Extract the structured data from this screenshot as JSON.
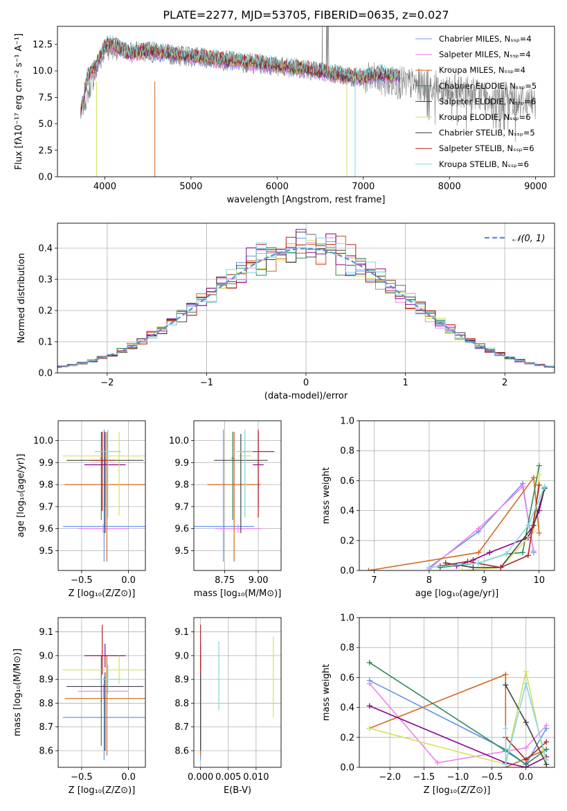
{
  "title": "PLATE=2277, MJD=53705, FIBERID=0635, z=0.027",
  "colors": [
    "#6495ed",
    "#ee82ee",
    "#d2691e",
    "#2e8b57",
    "#8b008b",
    "#d4e157",
    "#404040",
    "#b22222",
    "#7fd8e0"
  ],
  "chart_data": [
    {
      "id": "spectrum",
      "type": "line",
      "title": "PLATE=2277, MJD=53705, FIBERID=0635, z=0.027",
      "xlabel": "wavelength [Angstrom, rest frame]",
      "ylabel": "Flux [fλ10⁻¹⁷ erg cm⁻² s⁻¹ A⁻¹]",
      "xlim": [
        3450,
        9220
      ],
      "ylim": [
        0,
        14.2
      ],
      "xticks": [
        "4000",
        "5000",
        "6000",
        "7000",
        "8000",
        "9000"
      ],
      "yticks": [
        "0.0",
        "2.5",
        "5.0",
        "7.5",
        "10.0",
        "12.5"
      ],
      "grid": false,
      "legend_position": "top-right",
      "data_color": "#808080",
      "legend": [
        "Chabrier MILES, Nₛₛₚ=4",
        "Salpeter MILES, Nₛₛₚ=4",
        "Kroupa MILES, Nₛₛₚ=4",
        "Chabrier ELODIE, Nₛₛₚ=5",
        "Salpeter ELODIE, Nₛₛₚ=6",
        "Kroupa ELODIE, Nₛₛₚ=6",
        "Chabrier STELIB, Nₛₛₚ=5",
        "Salpeter STELIB, Nₛₛₚ=6",
        "Kroupa STELIB, Nₛₛₚ=6"
      ],
      "model_continuum": {
        "x": [
          3720,
          3800,
          3900,
          4000,
          4100,
          4200,
          4300,
          4400,
          4500,
          4600,
          4800,
          5000,
          5200,
          5400,
          5600,
          5800,
          6000,
          6200,
          6400,
          6600,
          6800,
          7000,
          7200,
          7400
        ],
        "y": [
          6.0,
          9.5,
          10.5,
          12.4,
          12.5,
          12.0,
          11.6,
          11.8,
          12.0,
          11.8,
          11.6,
          11.4,
          11.2,
          11.0,
          10.9,
          10.7,
          10.5,
          10.3,
          10.1,
          9.8,
          9.5,
          9.4,
          9.7,
          9.5
        ]
      },
      "data_continuum": {
        "x": [
          3720,
          4000,
          4500,
          5000,
          5500,
          6000,
          6500,
          7000,
          7500,
          8000,
          8500,
          9000
        ],
        "y": [
          6.0,
          12.0,
          11.8,
          11.3,
          10.9,
          10.5,
          10.0,
          9.3,
          8.8,
          8.3,
          7.6,
          7.0
        ]
      }
    },
    {
      "id": "residual-hist",
      "type": "line",
      "xlabel": "(data-model)/error",
      "ylabel": "Normed distribution",
      "xlim": [
        -2.5,
        2.5
      ],
      "ylim": [
        0,
        0.48
      ],
      "xticks": [
        "−2",
        "−1",
        "0",
        "1",
        "2"
      ],
      "yticks": [
        "0.0",
        "0.1",
        "0.2",
        "0.3",
        "0.4"
      ],
      "grid": true,
      "legend_position": "top-right",
      "legend": [
        "𝒩(0, 1)"
      ],
      "bin_width": 0.1,
      "bin_edges_start": -2.5
    },
    {
      "id": "age-vs-z",
      "type": "scatter",
      "xlabel": "Z [log₁₀(Z/Z⊙)]",
      "ylabel": "age  [log₁₀(age/yr)]",
      "xlim": [
        -0.75,
        0.18
      ],
      "ylim": [
        9.41,
        10.09
      ],
      "xticks": [
        "−0.5",
        "0.0"
      ],
      "yticks": [
        "9.5",
        "9.6",
        "9.7",
        "9.8",
        "9.9",
        "10.0"
      ],
      "grid": true,
      "points": [
        {
          "x": -0.26,
          "y": 9.61,
          "xerr": 0.44,
          "ylo": 9.45,
          "yhi": 10.05
        },
        {
          "x": -0.27,
          "y": 9.6,
          "xerr": 0.27,
          "ylo": 9.58,
          "yhi": 9.62
        },
        {
          "x": -0.23,
          "y": 9.8,
          "xerr": 0.45,
          "ylo": 9.45,
          "yhi": 10.04
        },
        {
          "x": -0.29,
          "y": 9.92,
          "xerr": 0.01,
          "ylo": 9.64,
          "yhi": 10.04
        },
        {
          "x": -0.25,
          "y": 9.89,
          "xerr": 0.22,
          "ylo": 9.7,
          "yhi": 10.04
        },
        {
          "x": -0.1,
          "y": 9.93,
          "xerr": 0.6,
          "ylo": 9.66,
          "yhi": 10.04
        },
        {
          "x": -0.25,
          "y": 9.91,
          "xerr": 0.41,
          "ylo": 9.58,
          "yhi": 10.03
        },
        {
          "x": -0.28,
          "y": 9.91,
          "xerr": 0.14,
          "ylo": 9.68,
          "yhi": 10.04
        },
        {
          "x": -0.22,
          "y": 9.95,
          "xerr": 0.14,
          "ylo": 9.65,
          "yhi": 10.05
        }
      ]
    },
    {
      "id": "age-vs-mass",
      "type": "scatter",
      "xlabel": "mass [log₁₀(M/M⊙)]",
      "ylabel": "",
      "xlim": [
        8.52,
        9.17
      ],
      "ylim": [
        9.41,
        10.09
      ],
      "xticks": [
        "8.75",
        "9.00"
      ],
      "yticks": [
        "9.5",
        "9.6",
        "9.7",
        "9.8",
        "9.9",
        "10.0"
      ],
      "grid": true,
      "points": [
        {
          "x": 8.74,
          "y": 9.61,
          "xerr": 0.23,
          "ylo": 9.45,
          "yhi": 10.05
        },
        {
          "x": 8.85,
          "y": 9.6,
          "xerr": 0.17,
          "ylo": 9.58,
          "yhi": 9.62
        },
        {
          "x": 8.82,
          "y": 9.8,
          "xerr": 0.2,
          "ylo": 9.45,
          "yhi": 10.04
        },
        {
          "x": 8.81,
          "y": 9.92,
          "xerr": 0.01,
          "ylo": 9.64,
          "yhi": 10.04
        },
        {
          "x": 9.0,
          "y": 9.89,
          "xerr": 0.04,
          "ylo": 9.7,
          "yhi": 10.04
        },
        {
          "x": 8.9,
          "y": 9.93,
          "xerr": 0.05,
          "ylo": 9.66,
          "yhi": 10.04
        },
        {
          "x": 8.87,
          "y": 9.91,
          "xerr": 0.2,
          "ylo": 9.58,
          "yhi": 10.03
        },
        {
          "x": 9.0,
          "y": 9.95,
          "xerr": 0.12,
          "ylo": 9.65,
          "yhi": 10.05
        },
        {
          "x": 8.9,
          "y": 9.95,
          "xerr": 0.06,
          "ylo": 9.65,
          "yhi": 10.05
        }
      ]
    },
    {
      "id": "weight-vs-age",
      "type": "line",
      "xlabel": "age  [log₁₀(age/yr)]",
      "ylabel": "mass weight",
      "xlim": [
        6.73,
        10.28
      ],
      "ylim": [
        0,
        1.0
      ],
      "xticks": [
        "7",
        "8",
        "9",
        "10"
      ],
      "yticks": [
        "0.0",
        "0.2",
        "0.4",
        "0.6",
        "0.8",
        "1.0"
      ],
      "grid": true,
      "series": [
        {
          "x": [
            8.0,
            8.9,
            9.7,
            9.9
          ],
          "y": [
            0.02,
            0.26,
            0.58,
            0.12
          ]
        },
        {
          "x": [
            8.0,
            8.9,
            9.7,
            9.9
          ],
          "y": [
            0.01,
            0.28,
            0.56,
            0.13
          ]
        },
        {
          "x": [
            6.9,
            8.9,
            9.9,
            10.0
          ],
          "y": [
            0.0,
            0.12,
            0.62,
            0.25
          ]
        },
        {
          "x": [
            8.2,
            8.9,
            9.4,
            9.7,
            10.0
          ],
          "y": [
            0.02,
            0.05,
            0.11,
            0.12,
            0.7
          ]
        },
        {
          "x": [
            8.5,
            8.8,
            9.1,
            9.8,
            10.0,
            10.1
          ],
          "y": [
            0.03,
            0.07,
            0.12,
            0.22,
            0.4,
            0.55
          ]
        },
        {
          "x": [
            8.6,
            9.3,
            9.9,
            10.0
          ],
          "y": [
            0.0,
            0.02,
            0.26,
            0.64
          ]
        },
        {
          "x": [
            8.3,
            8.8,
            9.3,
            9.9,
            10.1
          ],
          "y": [
            0.05,
            0.02,
            0.02,
            0.3,
            0.55
          ]
        },
        {
          "x": [
            8.2,
            8.7,
            9.3,
            9.8,
            10.0
          ],
          "y": [
            0.03,
            0.06,
            0.02,
            0.1,
            0.57
          ]
        },
        {
          "x": [
            8.0,
            8.9,
            9.4,
            9.8,
            10.1
          ],
          "y": [
            0.02,
            0.05,
            0.11,
            0.3,
            0.56
          ]
        }
      ]
    },
    {
      "id": "mass-vs-z",
      "type": "scatter",
      "xlabel": "Z [log₁₀(Z/Z⊙)]",
      "ylabel": "mass [log₁₀(M/M⊙)]",
      "xlim": [
        -0.75,
        0.18
      ],
      "ylim": [
        8.53,
        9.16
      ],
      "xticks": [
        "−0.5",
        "0.0"
      ],
      "yticks": [
        "8.6",
        "8.7",
        "8.8",
        "8.9",
        "9.0",
        "9.1"
      ],
      "grid": true,
      "points": [
        {
          "x": -0.26,
          "y": 8.74,
          "xerr": 0.44,
          "ylo": 8.56,
          "yhi": 8.91
        },
        {
          "x": -0.27,
          "y": 8.85,
          "xerr": 0.27,
          "ylo": 8.82,
          "yhi": 8.88
        },
        {
          "x": -0.23,
          "y": 8.82,
          "xerr": 0.45,
          "ylo": 8.58,
          "yhi": 9.0
        },
        {
          "x": -0.29,
          "y": 8.81,
          "xerr": 0.01,
          "ylo": 8.62,
          "yhi": 9.0
        },
        {
          "x": -0.25,
          "y": 9.0,
          "xerr": 0.22,
          "ylo": 8.95,
          "yhi": 9.05
        },
        {
          "x": -0.1,
          "y": 8.94,
          "xerr": 0.6,
          "ylo": 8.88,
          "yhi": 9.0
        },
        {
          "x": -0.25,
          "y": 8.87,
          "xerr": 0.41,
          "ylo": 8.6,
          "yhi": 8.93
        },
        {
          "x": -0.28,
          "y": 9.0,
          "xerr": 0.14,
          "ylo": 8.92,
          "yhi": 9.13
        },
        {
          "x": -0.22,
          "y": 8.9,
          "xerr": 0.14,
          "ylo": 8.84,
          "yhi": 8.96
        }
      ]
    },
    {
      "id": "mass-vs-ebv",
      "type": "scatter",
      "xlabel": "E(B-V)",
      "ylabel": "",
      "xlim": [
        -0.0012,
        0.0145
      ],
      "ylim": [
        8.53,
        9.16
      ],
      "xticks": [
        "0.000",
        "0.005",
        "0.010"
      ],
      "yticks": [
        "8.6",
        "8.7",
        "8.8",
        "8.9",
        "9.0",
        "9.1"
      ],
      "grid": true,
      "points": [
        {
          "x": 0.0,
          "y": 8.74,
          "xerr": 5e-05,
          "ylo": 8.56,
          "yhi": 8.91
        },
        {
          "x": 0.0,
          "y": 8.85,
          "xerr": 5e-05,
          "ylo": 8.82,
          "yhi": 8.88
        },
        {
          "x": 0.0,
          "y": 8.82,
          "xerr": 5e-05,
          "ylo": 8.58,
          "yhi": 9.0
        },
        {
          "x": 0.0,
          "y": 8.81,
          "xerr": 5e-05,
          "ylo": 8.62,
          "yhi": 9.0
        },
        {
          "x": 0.0,
          "y": 9.0,
          "xerr": 5e-05,
          "ylo": 8.95,
          "yhi": 9.05
        },
        {
          "x": 0.0131,
          "y": 8.94,
          "xerr": 5e-05,
          "ylo": 8.74,
          "yhi": 9.08
        },
        {
          "x": 0.0,
          "y": 8.87,
          "xerr": 5e-05,
          "ylo": 8.6,
          "yhi": 8.93
        },
        {
          "x": 0.0,
          "y": 9.0,
          "xerr": 5e-05,
          "ylo": 8.92,
          "yhi": 9.13
        },
        {
          "x": 0.0033,
          "y": 8.9,
          "xerr": 5e-05,
          "ylo": 8.77,
          "yhi": 9.06
        }
      ]
    },
    {
      "id": "weight-vs-z",
      "type": "line",
      "xlabel": "Z [log₁₀(Z/Z⊙)]",
      "ylabel": "mass weight",
      "xlim": [
        -2.45,
        0.42
      ],
      "ylim": [
        0,
        1.0
      ],
      "xticks": [
        "−2.0",
        "−1.5",
        "−1.0",
        "−0.5",
        "0.0"
      ],
      "yticks": [
        "0.0",
        "0.2",
        "0.4",
        "0.6",
        "0.8",
        "1.0"
      ],
      "grid": true,
      "series": [
        {
          "x": [
            -2.3,
            -0.3,
            0.0,
            0.3
          ],
          "y": [
            0.58,
            0.12,
            0.02,
            0.26
          ]
        },
        {
          "x": [
            -2.3,
            -1.3,
            0.0,
            0.3
          ],
          "y": [
            0.56,
            0.03,
            0.13,
            0.28
          ]
        },
        {
          "x": [
            -2.3,
            -0.3,
            -0.3,
            0.3
          ],
          "y": [
            0.26,
            0.62,
            0.0,
            0.12
          ]
        },
        {
          "x": [
            -2.3,
            -0.3,
            0.0,
            0.3
          ],
          "y": [
            0.7,
            0.11,
            0.02,
            0.12
          ]
        },
        {
          "x": [
            -2.3,
            -0.3,
            0.0,
            0.3
          ],
          "y": [
            0.41,
            0.03,
            0.0,
            0.07
          ]
        },
        {
          "x": [
            -2.3,
            -0.3,
            0.0,
            0.3
          ],
          "y": [
            0.26,
            0.02,
            0.64,
            0.0
          ]
        },
        {
          "x": [
            -0.3,
            0.0,
            0.3
          ],
          "y": [
            0.55,
            0.3,
            0.02
          ]
        },
        {
          "x": [
            -0.3,
            0.0,
            0.3
          ],
          "y": [
            0.2,
            0.05,
            0.17
          ]
        },
        {
          "x": [
            -0.3,
            -0.3,
            0.0,
            0.3
          ],
          "y": [
            0.26,
            0.02,
            0.56,
            0.05
          ]
        }
      ]
    }
  ]
}
